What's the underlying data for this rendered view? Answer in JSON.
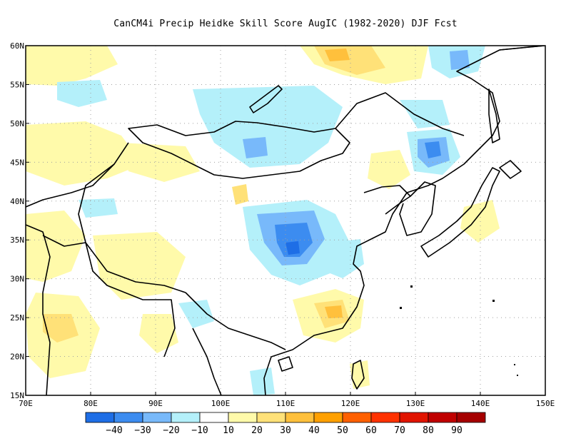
{
  "title": "CanCM4i Precip Heidke Skill Score AugIC (1982-2020) DJF Fcst",
  "map": {
    "region": {
      "lon_min": 70,
      "lon_max": 150,
      "lat_min": 15,
      "lat_max": 60
    },
    "lon_ticks": [
      "70E",
      "80E",
      "90E",
      "100E",
      "110E",
      "120E",
      "130E",
      "140E",
      "150E"
    ],
    "lat_ticks": [
      "15N",
      "20N",
      "25N",
      "30N",
      "35N",
      "40N",
      "45N",
      "50N",
      "55N",
      "60N"
    ],
    "gridlines": "dotted",
    "coastline_color": "#000000"
  },
  "colorbar": {
    "colors": [
      "#1e6ee6",
      "#3c8cf0",
      "#78b9fa",
      "#b4f0fa",
      "#ffffff",
      "#fffaaa",
      "#ffe178",
      "#ffc03c",
      "#ffa000",
      "#ff6000",
      "#ff3200",
      "#e11400",
      "#c00000",
      "#a50000"
    ],
    "labels": [
      "−40",
      "−30",
      "−20",
      "−10",
      "10",
      "20",
      "30",
      "40",
      "50",
      "60",
      "70",
      "80",
      "90"
    ]
  }
}
